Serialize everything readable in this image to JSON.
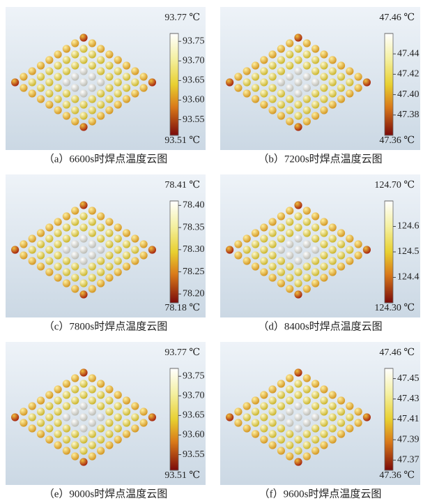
{
  "panels": [
    {
      "caption": "（a）6600s时焊点温度云图",
      "max_label": "93.77 ℃",
      "min_label": "93.51 ℃",
      "range": [
        93.51,
        93.77
      ],
      "ticks": [
        93.75,
        {
          "value": 93.7,
          "label": "93.70"
        },
        93.65,
        {
          "value": 93.6,
          "label": "93.60"
        },
        93.55
      ]
    },
    {
      "caption": "（b）7200s时焊点温度云图",
      "max_label": "47.46 ℃",
      "min_label": "47.36 ℃",
      "range": [
        47.36,
        47.46
      ],
      "ticks": [
        47.44,
        47.42,
        {
          "value": 47.4,
          "label": "47.40"
        },
        47.38
      ]
    },
    {
      "caption": "（c）7800s时焊点温度云图",
      "max_label": "78.41 ℃",
      "min_label": "78.18 ℃",
      "range": [
        78.18,
        78.41
      ],
      "ticks": [
        {
          "value": 78.4,
          "label": "78.40"
        },
        78.35,
        {
          "value": 78.3,
          "label": "78.30"
        },
        78.25,
        {
          "value": 78.2,
          "label": "78.20"
        }
      ]
    },
    {
      "caption": "（d）8400s时焊点温度云图",
      "max_label": "124.70 ℃",
      "min_label": "124.30 ℃",
      "range": [
        124.3,
        124.7
      ],
      "ticks": [
        124.6,
        124.5,
        124.4
      ]
    },
    {
      "caption": "（e）9000s时焊点温度云图",
      "max_label": "93.77 ℃",
      "min_label": "93.51 ℃",
      "range": [
        93.51,
        93.77
      ],
      "ticks": [
        93.75,
        {
          "value": 93.7,
          "label": "93.70"
        },
        93.65,
        {
          "value": 93.6,
          "label": "93.60"
        },
        93.55
      ]
    },
    {
      "caption": "（f）9600s时焊点温度云图",
      "max_label": "47.46 ℃",
      "min_label": "47.36 ℃",
      "range": [
        47.36,
        47.46
      ],
      "ticks": [
        47.45,
        47.43,
        47.41,
        47.39,
        47.37
      ]
    }
  ]
}
